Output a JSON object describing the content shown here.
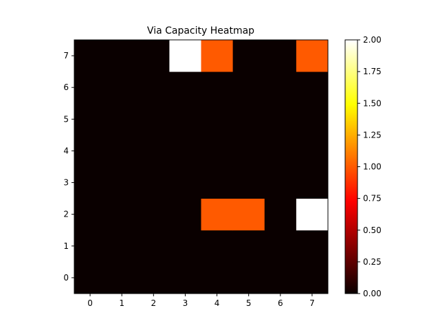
{
  "chart_data": {
    "type": "heatmap",
    "title": "Via Capacity Heatmap",
    "xlabel": "",
    "ylabel": "",
    "x_categories": [
      "0",
      "1",
      "2",
      "3",
      "4",
      "5",
      "6",
      "7"
    ],
    "y_categories": [
      "0",
      "1",
      "2",
      "3",
      "4",
      "5",
      "6",
      "7"
    ],
    "y_origin": "bottom",
    "values": [
      [
        0,
        0,
        0,
        0,
        0,
        0,
        0,
        0
      ],
      [
        0,
        0,
        0,
        0,
        0,
        0,
        0,
        0
      ],
      [
        0,
        0,
        0,
        0,
        1,
        1,
        0,
        2
      ],
      [
        0,
        0,
        0,
        0,
        0,
        0,
        0,
        0
      ],
      [
        0,
        0,
        0,
        0,
        0,
        0,
        0,
        0
      ],
      [
        0,
        0,
        0,
        0,
        0,
        0,
        0,
        0
      ],
      [
        0,
        0,
        0,
        0,
        0,
        0,
        0,
        0
      ],
      [
        0,
        0,
        0,
        2,
        1,
        0,
        0,
        1
      ]
    ],
    "colormap": "hot",
    "vmin": 0,
    "vmax": 2,
    "colorbar_ticks": [
      "0.00",
      "0.25",
      "0.50",
      "0.75",
      "1.00",
      "1.25",
      "1.50",
      "1.75",
      "2.00"
    ],
    "grid": false,
    "colorbar_position": "right"
  }
}
